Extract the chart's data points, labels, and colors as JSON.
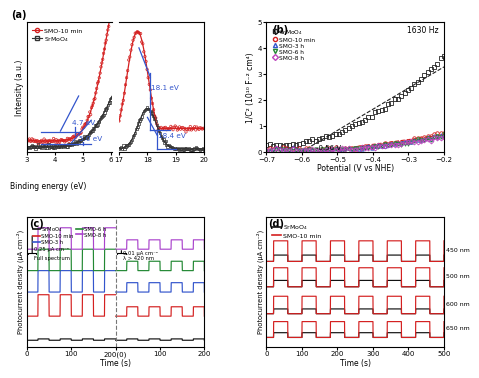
{
  "panel_a": {
    "label": "(a)",
    "ylabel": "Intensity (a.u.)",
    "xlabel": "Binding energy (eV)",
    "smo_color": "#d42020",
    "srm_color": "#333333",
    "annotation_color": "#3355cc"
  },
  "panel_b": {
    "label": "(b)",
    "ylabel": "1/C² (10¹⁰ F⁻² cm⁴)",
    "xlabel": "Potential (V vs NHE)",
    "xlim": [
      -0.7,
      -0.2
    ],
    "ylim": [
      0,
      5
    ],
    "annotation": "-0.56 V",
    "freq_label": "1630 Hz",
    "colors": {
      "SrMoO4": "#222222",
      "SMO-10 min": "#d42020",
      "SMO-3 h": "#3355cc",
      "SMO-6 h": "#228833",
      "SMO-8 h": "#bb44bb"
    }
  },
  "panel_c": {
    "label": "(c)",
    "ylabel": "Photocurrent density (μA cm⁻²)",
    "xlabel": "Time (s)",
    "colors": {
      "SrMoO4": "#111111",
      "SMO-10 min": "#d42020",
      "SMO-3 h": "#3355cc",
      "SMO-6 h": "#228833",
      "SMO-8 h": "#aa44cc"
    }
  },
  "panel_d": {
    "label": "(d)",
    "ylabel": "Photocurrent density (μA cm⁻²)",
    "xlabel": "Time (s)",
    "wavelengths": [
      "650 nm",
      "600 nm",
      "500 nm",
      "450 nm"
    ],
    "colors": {
      "SrMoO4": "#111111",
      "SMO-10 min": "#d42020"
    }
  },
  "bg_color": "#ffffff"
}
